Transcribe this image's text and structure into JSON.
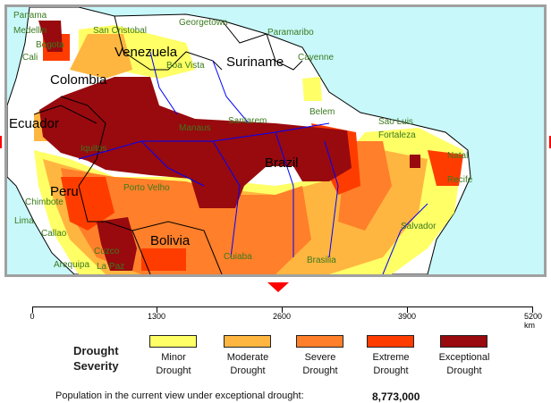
{
  "map": {
    "countries": [
      "Venezuela",
      "Suriname",
      "Colombia",
      "Ecuador",
      "Brazil",
      "Peru",
      "Bolivia"
    ],
    "cities": [
      "Panama",
      "Medellin",
      "Bogota",
      "Cali",
      "San Cristobal",
      "Georgetown",
      "Paramaribo",
      "Cayenne",
      "Boa Vista",
      "Santarem",
      "Manaus",
      "Belem",
      "Sao Luis",
      "Fortaleza",
      "Iquitos",
      "Natal",
      "Recife",
      "Porto Velho",
      "Chimbote",
      "Lima",
      "Callao",
      "Cuzco",
      "Arequipa",
      "La Paz",
      "Cuiaba",
      "Brasilia",
      "Salvador"
    ],
    "colors": {
      "ocean": "#c8f8fa",
      "land": "#ffffff",
      "border": "#000000",
      "river": "#0000ff",
      "city": "#3a7a1e"
    }
  },
  "scale": {
    "ticks": [
      "0",
      "1300",
      "2600",
      "3900",
      "5200 km"
    ],
    "marker_value": 2600
  },
  "legend": {
    "title_line1": "Drought",
    "title_line2": "Severity",
    "items": [
      {
        "line1": "Minor",
        "line2": "Drought",
        "color": "#ffff66"
      },
      {
        "line1": "Moderate",
        "line2": "Drought",
        "color": "#ffb640"
      },
      {
        "line1": "Severe",
        "line2": "Drought",
        "color": "#ff7f2a"
      },
      {
        "line1": "Extreme",
        "line2": "Drought",
        "color": "#ff3c00"
      },
      {
        "line1": "Exceptional",
        "line2": "Drought",
        "color": "#980a0e"
      }
    ]
  },
  "population": {
    "label": "Population in the current view under exceptional drought:",
    "value": "8,773,000"
  }
}
